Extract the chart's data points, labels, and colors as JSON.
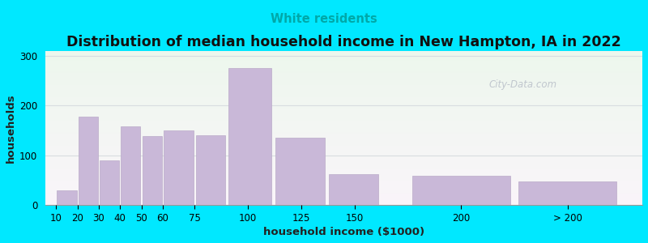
{
  "title": "Distribution of median household income in New Hampton, IA in 2022",
  "subtitle": "White residents",
  "xlabel": "household income ($1000)",
  "ylabel": "households",
  "bar_color": "#c9b8d8",
  "bar_edgecolor": "#baaac8",
  "background_outer": "#00e8ff",
  "background_inner": "#f5faf0",
  "title_fontsize": 12.5,
  "subtitle_fontsize": 10.5,
  "subtitle_color": "#00a8a8",
  "axis_label_fontsize": 9.5,
  "tick_fontsize": 8.5,
  "ylim": [
    0,
    310
  ],
  "yticks": [
    0,
    100,
    200,
    300
  ],
  "tick_labels": [
    "10",
    "20",
    "30",
    "40",
    "50",
    "60",
    "75",
    "100",
    "125",
    "150",
    "200",
    "> 200"
  ],
  "left_edges": [
    10,
    20,
    30,
    40,
    50,
    60,
    75,
    90,
    112,
    137,
    175,
    225
  ],
  "bar_widths": [
    10,
    10,
    10,
    10,
    10,
    15,
    15,
    22,
    25,
    25,
    50,
    50
  ],
  "tick_positions": [
    10,
    20,
    30,
    40,
    50,
    60,
    75,
    100,
    125,
    150,
    200,
    250
  ],
  "values": [
    30,
    178,
    90,
    158,
    138,
    150,
    140,
    275,
    135,
    62,
    58,
    47
  ],
  "xlim": [
    5,
    285
  ],
  "watermark_text": "City-Data.com",
  "watermark_color": "#b8bec8",
  "grid_color": "#d8dde0"
}
